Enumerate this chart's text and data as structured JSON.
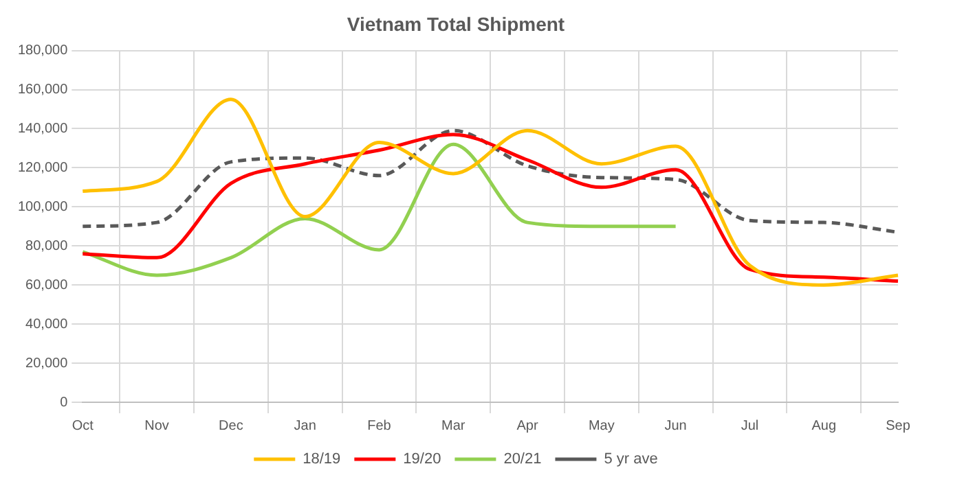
{
  "chart_data": {
    "type": "line",
    "title": "Vietnam Total Shipment",
    "categories": [
      "Oct",
      "Nov",
      "Dec",
      "Jan",
      "Feb",
      "Mar",
      "Apr",
      "May",
      "Jun",
      "Jul",
      "Aug",
      "Sep"
    ],
    "series": [
      {
        "name": "18/19",
        "color": "#ffc000",
        "values": [
          108000,
          113000,
          155000,
          95000,
          133000,
          117000,
          139000,
          122000,
          131000,
          70000,
          60000,
          65000
        ]
      },
      {
        "name": "19/20",
        "color": "#ff0000",
        "values": [
          76000,
          74000,
          112000,
          122000,
          129000,
          137000,
          124000,
          110000,
          119000,
          68000,
          64000,
          62000
        ]
      },
      {
        "name": "20/21",
        "color": "#92d050",
        "values": [
          77000,
          65000,
          74000,
          94000,
          78000,
          132000,
          92000,
          90000,
          90000,
          null,
          null,
          null
        ]
      },
      {
        "name": "5 yr ave",
        "color": "#595959",
        "line_style": "dashed",
        "values": [
          90000,
          92000,
          123000,
          125000,
          116000,
          139000,
          121000,
          115000,
          114000,
          93000,
          92000,
          87000
        ]
      }
    ],
    "ylim": [
      0,
      180000
    ],
    "yticks": [
      0,
      {
        "value": 20000,
        "label": "20,000"
      },
      {
        "value": 40000,
        "label": "40,000"
      },
      {
        "value": 60000,
        "label": "60,000"
      },
      {
        "value": 80000,
        "label": "80,000"
      },
      {
        "value": 100000,
        "label": "100,000"
      },
      {
        "value": 120000,
        "label": "120,000"
      },
      {
        "value": 140000,
        "label": "140,000"
      },
      {
        "value": 160000,
        "label": "160,000"
      },
      {
        "value": 180000,
        "label": "180,000"
      }
    ],
    "grid": true,
    "legend": "bottom",
    "marker": "none"
  }
}
